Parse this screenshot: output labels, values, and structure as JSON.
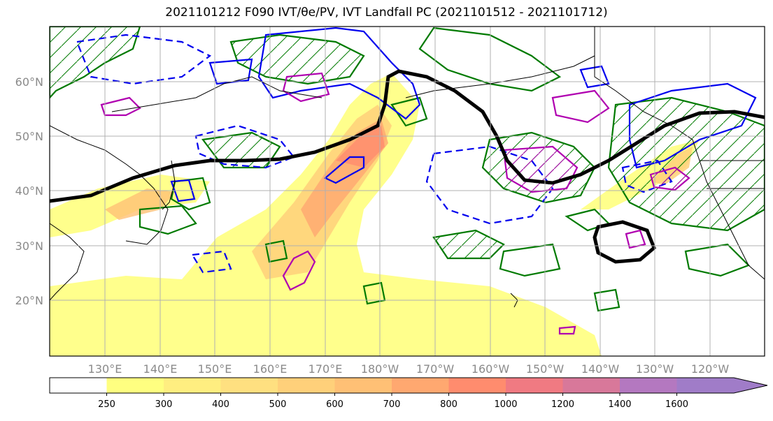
{
  "title": "2021101212 F090 IVT/θe/PV, IVT Landfall PC (2021101512 - 2021101712)",
  "latitude_labels": [
    "60°N",
    "50°N",
    "40°N",
    "30°N",
    "20°N"
  ],
  "longitude_labels": [
    "130°E",
    "140°E",
    "150°E",
    "160°E",
    "170°E",
    "180°W",
    "170°W",
    "160°W",
    "150°W",
    "140°W",
    "130°W",
    "120°W"
  ],
  "colorbar": {
    "levels": [
      "250",
      "300",
      "400",
      "500",
      "600",
      "700",
      "800",
      "1000",
      "1200",
      "1400",
      "1600"
    ],
    "colors": [
      "#ffffff",
      "#ffff80",
      "#ffee80",
      "#ffe080",
      "#ffd07a",
      "#ffc075",
      "#ffa870",
      "#ff8c6e",
      "#f07a82",
      "#d8789a",
      "#b478c0",
      "#a07cc8"
    ]
  },
  "colors": {
    "ivt_fill": "#ffe070",
    "pv_solid": "#0000ee",
    "pv_dashed": "#0000ee",
    "theta_e_green": "#007a00",
    "magenta_contour": "#b000b0",
    "landfall_pc": "#000000",
    "grid": "#b0b0b0"
  }
}
